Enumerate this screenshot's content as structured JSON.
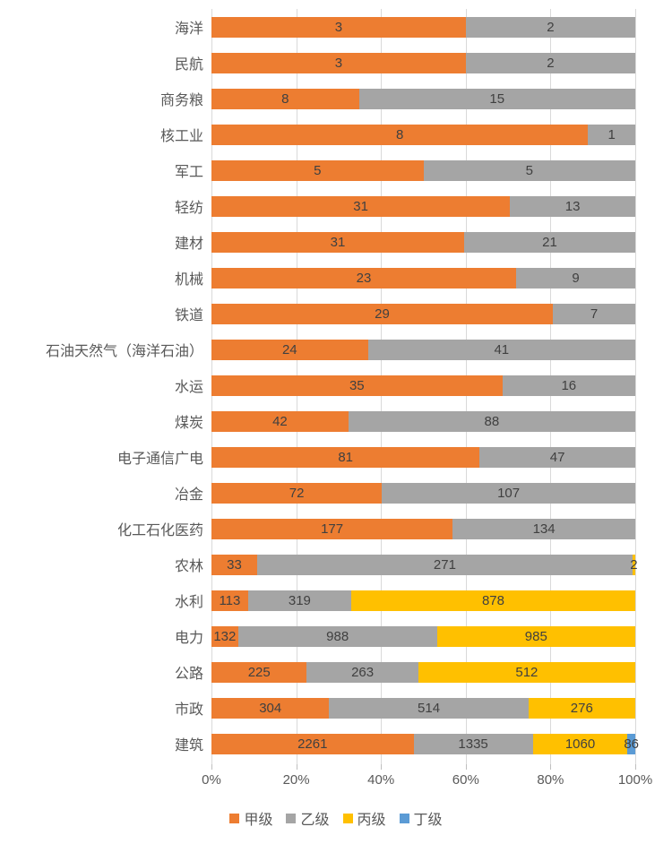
{
  "chart_data": {
    "type": "bar",
    "orientation": "horizontal",
    "stacking": "percent",
    "title": "",
    "xlabel": "",
    "ylabel": "",
    "x_range": [
      0,
      100
    ],
    "grid": true,
    "legend_position": "bottom",
    "value_labels": "inside-center",
    "categories": [
      "海洋",
      "民航",
      "商务粮",
      "核工业",
      "军工",
      "轻纺",
      "建材",
      "机械",
      "铁道",
      "石油天然气（海洋石油）",
      "水运",
      "煤炭",
      "电子通信广电",
      "冶金",
      "化工石化医药",
      "农林",
      "水利",
      "电力",
      "公路",
      "市政",
      "建筑"
    ],
    "series": [
      {
        "name": "甲级",
        "color": "#ED7D31",
        "values": [
          3,
          3,
          8,
          8,
          5,
          31,
          31,
          23,
          29,
          24,
          35,
          42,
          81,
          72,
          177,
          33,
          113,
          132,
          225,
          304,
          2261
        ]
      },
      {
        "name": "乙级",
        "color": "#A5A5A5",
        "values": [
          2,
          2,
          15,
          1,
          5,
          13,
          21,
          9,
          7,
          41,
          16,
          88,
          47,
          107,
          134,
          271,
          319,
          988,
          263,
          514,
          1335
        ]
      },
      {
        "name": "丙级",
        "color": "#FFC000",
        "values": [
          0,
          0,
          0,
          0,
          0,
          0,
          0,
          0,
          0,
          0,
          0,
          0,
          0,
          0,
          0,
          2,
          878,
          985,
          512,
          276,
          1060
        ]
      },
      {
        "name": "丁级",
        "color": "#5B9BD5",
        "values": [
          0,
          0,
          0,
          0,
          0,
          0,
          0,
          0,
          0,
          0,
          0,
          0,
          0,
          0,
          0,
          0,
          0,
          0,
          0,
          0,
          86
        ]
      }
    ],
    "x_ticks": [
      "0%",
      "20%",
      "40%",
      "60%",
      "80%",
      "100%"
    ]
  },
  "colors": {
    "background": "#FFFFFF",
    "gridline": "#D9D9D9",
    "axis_text": "#595959",
    "category_text": "#595959",
    "value_text": "#404040"
  }
}
